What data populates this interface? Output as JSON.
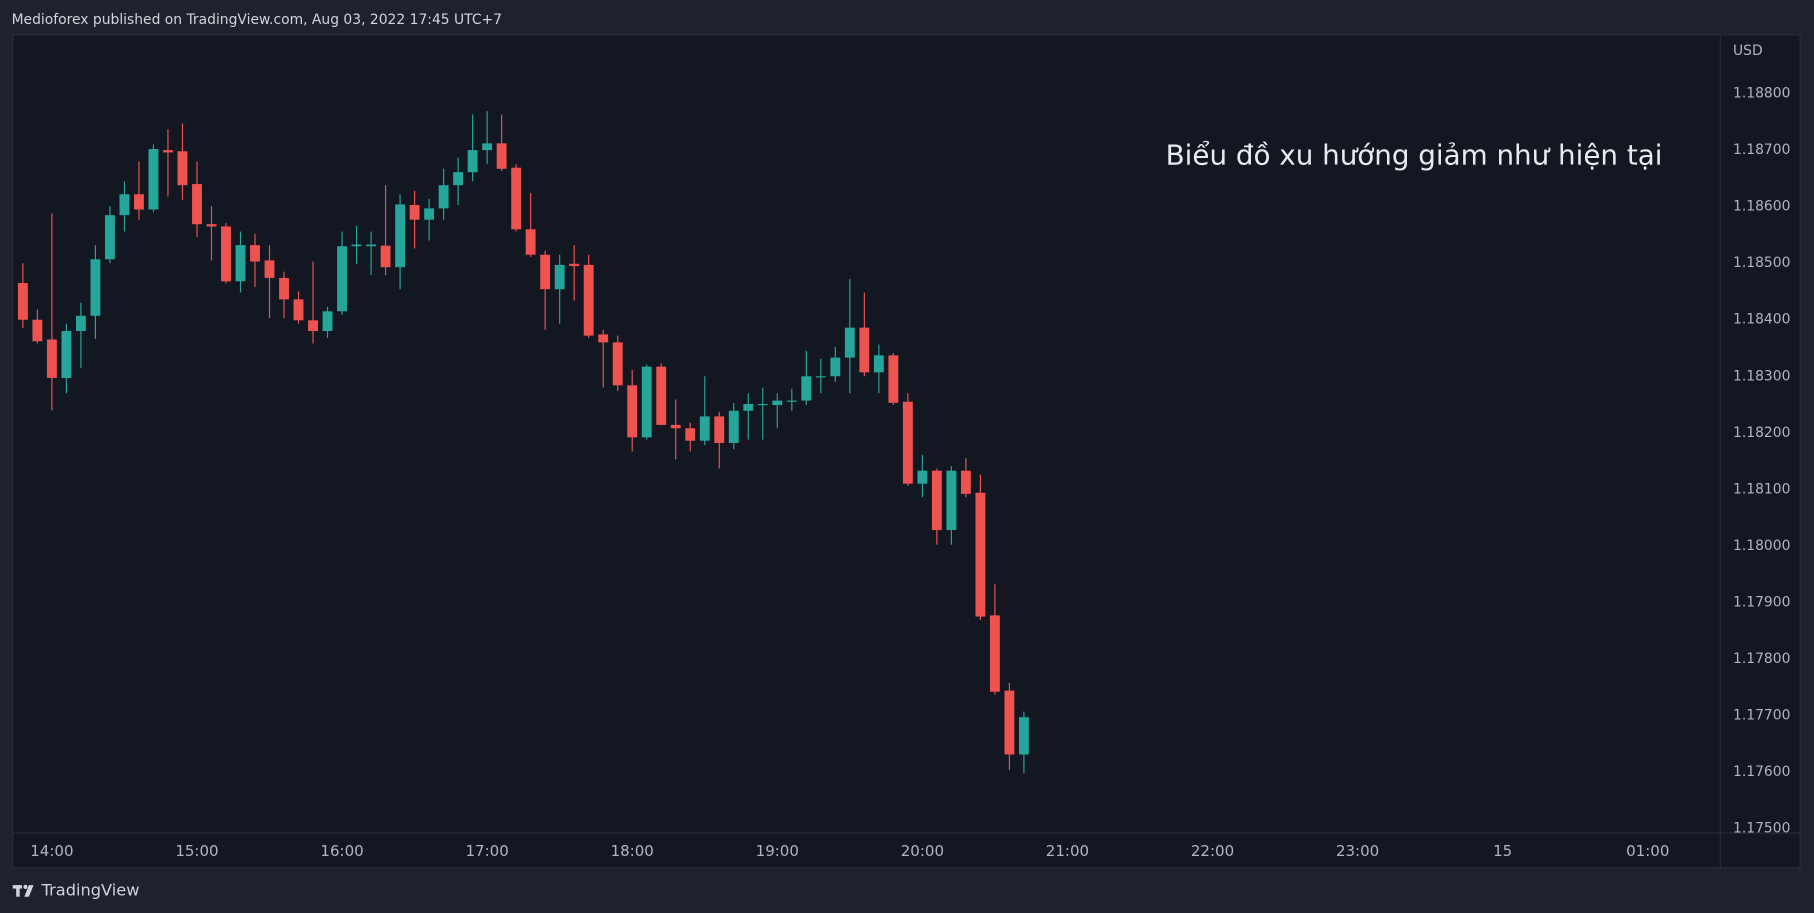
{
  "header": {
    "text": "Medioforex published on TradingView.com, Aug 03, 2022 17:45 UTC+7"
  },
  "footer": {
    "brand": "TradingView"
  },
  "chart_data": {
    "type": "candlestick",
    "annotation": "Biểu đồ xu hướng giảm như hiện tại",
    "y_unit": "USD",
    "up_color": "#26a69a",
    "down_color": "#ef5350",
    "grid": false,
    "x": [
      13.8,
      13.9,
      14.0,
      14.1,
      14.2,
      14.3,
      14.4,
      14.5,
      14.6,
      14.7,
      14.8,
      14.9,
      15.0,
      15.1,
      15.2,
      15.3,
      15.4,
      15.5,
      15.6,
      15.7,
      15.8,
      15.9,
      16.0,
      16.1,
      16.2,
      16.3,
      16.4,
      16.5,
      16.6,
      16.7,
      16.8,
      16.9,
      17.0,
      17.1,
      17.2,
      17.3,
      17.4,
      17.5,
      17.6,
      17.7,
      17.8,
      17.9,
      18.0,
      18.1,
      18.2,
      18.3,
      18.4,
      18.5,
      18.6,
      18.7,
      18.8,
      18.9,
      19.0,
      19.1,
      19.2,
      19.3,
      19.4,
      19.5,
      19.6,
      19.7,
      19.8,
      19.9,
      20.0,
      20.1,
      20.2,
      20.3,
      20.4,
      20.5,
      20.6,
      20.7
    ],
    "open": [
      1.18465,
      1.184,
      1.18365,
      1.18297,
      1.1838,
      1.18407,
      1.18507,
      1.18585,
      1.18622,
      1.18595,
      1.187,
      1.18698,
      1.1864,
      1.18569,
      1.18565,
      1.18468,
      1.18532,
      1.18505,
      1.18474,
      1.18436,
      1.18399,
      1.1838,
      1.18415,
      1.1853,
      1.1853,
      1.18531,
      1.18493,
      1.18603,
      1.18577,
      1.18597,
      1.18638,
      1.18661,
      1.187,
      1.18712,
      1.18669,
      1.1856,
      1.18515,
      1.18454,
      1.18499,
      1.18497,
      1.18374,
      1.1836,
      1.18284,
      1.18192,
      1.18317,
      1.18214,
      1.18208,
      1.18186,
      1.18229,
      1.18182,
      1.18239,
      1.18249,
      1.18249,
      1.18255,
      1.18257,
      1.18298,
      1.183,
      1.18333,
      1.18386,
      1.18307,
      1.18337,
      1.18255,
      1.1811,
      1.18133,
      1.18028,
      1.18133,
      1.18094,
      1.17877,
      1.17744,
      1.17631
    ],
    "high": [
      1.185,
      1.18418,
      1.18588,
      1.18393,
      1.1843,
      1.18532,
      1.18601,
      1.18645,
      1.1868,
      1.1871,
      1.18737,
      1.18747,
      1.1868,
      1.18601,
      1.18571,
      1.18556,
      1.18552,
      1.18532,
      1.18485,
      1.1845,
      1.18503,
      1.18423,
      1.18556,
      1.18566,
      1.18556,
      1.18638,
      1.18622,
      1.18628,
      1.18614,
      1.18667,
      1.18687,
      1.18763,
      1.18769,
      1.18763,
      1.18675,
      1.18624,
      1.18522,
      1.18515,
      1.18532,
      1.18515,
      1.18382,
      1.18372,
      1.18311,
      1.18321,
      1.18323,
      1.18259,
      1.18218,
      1.183,
      1.18237,
      1.18253,
      1.1827,
      1.1828,
      1.1827,
      1.18278,
      1.18345,
      1.18331,
      1.18352,
      1.18472,
      1.18448,
      1.18356,
      1.18341,
      1.1827,
      1.18161,
      1.18137,
      1.18141,
      1.18155,
      1.18126,
      1.17932,
      1.17758,
      1.17707
    ],
    "low": [
      1.18385,
      1.18358,
      1.1824,
      1.1827,
      1.18315,
      1.18366,
      1.185,
      1.18556,
      1.18577,
      1.1859,
      1.18618,
      1.18612,
      1.18546,
      1.18505,
      1.18464,
      1.18448,
      1.18458,
      1.18403,
      1.18403,
      1.18393,
      1.18358,
      1.18368,
      1.18409,
      1.18499,
      1.18479,
      1.18479,
      1.18454,
      1.18526,
      1.1854,
      1.18577,
      1.18603,
      1.18645,
      1.18675,
      1.18663,
      1.18556,
      1.18511,
      1.18382,
      1.18393,
      1.18434,
      1.18368,
      1.1828,
      1.18274,
      1.18167,
      1.18188,
      1.18214,
      1.18153,
      1.18167,
      1.18178,
      1.18137,
      1.18171,
      1.18188,
      1.18188,
      1.18208,
      1.18239,
      1.18249,
      1.1827,
      1.1829,
      1.1827,
      1.183,
      1.1827,
      1.18249,
      1.18106,
      1.18086,
      1.18002,
      1.18002,
      1.18086,
      1.17869,
      1.17737,
      1.17604,
      1.17598
    ],
    "close": [
      1.184,
      1.18362,
      1.18297,
      1.1838,
      1.18407,
      1.18507,
      1.18585,
      1.18622,
      1.18595,
      1.18702,
      1.18696,
      1.18638,
      1.18569,
      1.18565,
      1.18468,
      1.18532,
      1.18503,
      1.18474,
      1.18436,
      1.18399,
      1.1838,
      1.18415,
      1.1853,
      1.18533,
      1.18533,
      1.18493,
      1.18604,
      1.18577,
      1.18597,
      1.18638,
      1.18661,
      1.187,
      1.18712,
      1.18667,
      1.1856,
      1.18515,
      1.18454,
      1.18497,
      1.18495,
      1.18372,
      1.1836,
      1.18284,
      1.18192,
      1.18317,
      1.18214,
      1.18208,
      1.18186,
      1.18229,
      1.18182,
      1.18239,
      1.18251,
      1.18251,
      1.18257,
      1.18257,
      1.183,
      1.183,
      1.18333,
      1.18386,
      1.18307,
      1.18337,
      1.18253,
      1.1811,
      1.18133,
      1.18028,
      1.18133,
      1.18092,
      1.17875,
      1.17742,
      1.17631,
      1.17697
    ],
    "xlim": [
      13.73,
      25.5
    ],
    "ylim": [
      1.17492,
      1.18904
    ],
    "xticks": [
      {
        "value": 14,
        "label": "14:00"
      },
      {
        "value": 15,
        "label": "15:00"
      },
      {
        "value": 16,
        "label": "16:00"
      },
      {
        "value": 17,
        "label": "17:00"
      },
      {
        "value": 18,
        "label": "18:00"
      },
      {
        "value": 19,
        "label": "19:00"
      },
      {
        "value": 20,
        "label": "20:00"
      },
      {
        "value": 21,
        "label": "21:00"
      },
      {
        "value": 22,
        "label": "22:00"
      },
      {
        "value": 23,
        "label": "23:00"
      },
      {
        "value": 24,
        "label": "15"
      },
      {
        "value": 25,
        "label": "01:00"
      }
    ],
    "yticks": [
      {
        "value": 1.175,
        "label": "1.17500"
      },
      {
        "value": 1.176,
        "label": "1.17600"
      },
      {
        "value": 1.177,
        "label": "1.17700"
      },
      {
        "value": 1.178,
        "label": "1.17800"
      },
      {
        "value": 1.179,
        "label": "1.17900"
      },
      {
        "value": 1.18,
        "label": "1.18000"
      },
      {
        "value": 1.181,
        "label": "1.18100"
      },
      {
        "value": 1.182,
        "label": "1.18200"
      },
      {
        "value": 1.183,
        "label": "1.18300"
      },
      {
        "value": 1.184,
        "label": "1.18400"
      },
      {
        "value": 1.185,
        "label": "1.18500"
      },
      {
        "value": 1.186,
        "label": "1.18600"
      },
      {
        "value": 1.187,
        "label": "1.18700"
      },
      {
        "value": 1.188,
        "label": "1.18800"
      }
    ]
  }
}
